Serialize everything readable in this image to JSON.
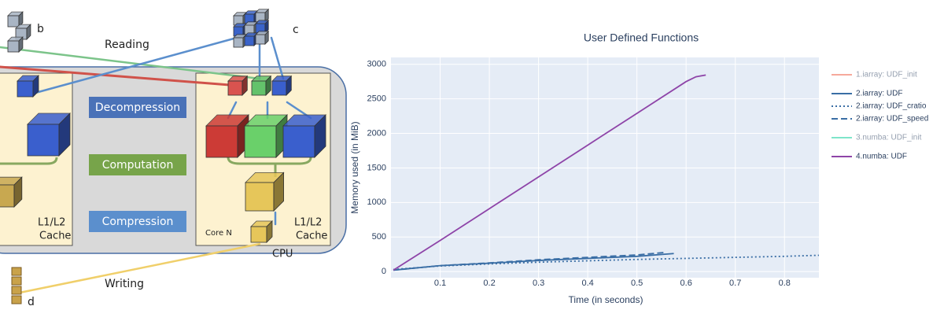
{
  "diagram": {
    "label_b": "b",
    "label_c": "c",
    "label_d": "d",
    "reading": "Reading",
    "writing": "Writing",
    "decompression": "Decompression",
    "computation": "Computation",
    "compression": "Compression",
    "cache_left": [
      "L1/L2",
      "Cache"
    ],
    "cache_right": [
      "L1/L2",
      "Cache"
    ],
    "core": "Core N",
    "cpu": "CPU"
  },
  "chart_data": {
    "type": "line",
    "title": "User Defined Functions",
    "x_label": "Time (in seconds)",
    "y_label": "Memory used (in MiB)",
    "xlim": [
      0,
      0.87
    ],
    "xticks": [
      0.1,
      0.2,
      0.3,
      0.4,
      0.5,
      0.6,
      0.7,
      0.8
    ],
    "ylim": [
      -90,
      3100
    ],
    "yticks": [
      0,
      500,
      1000,
      1500,
      2000,
      2500,
      3000
    ],
    "grid": true,
    "series": [
      {
        "name": "1.iarray: UDF_init",
        "color": "#ef553b",
        "dash": "solid",
        "visible": "legendonly",
        "x": [],
        "values": []
      },
      {
        "name": "2.iarray: UDF",
        "color": "#3a6ea5",
        "dash": "solid",
        "x": [
          0.005,
          0.1,
          0.2,
          0.3,
          0.4,
          0.5,
          0.575
        ],
        "values": [
          20,
          85,
          120,
          160,
          190,
          220,
          260
        ]
      },
      {
        "name": "2.iarray: UDF_cratio",
        "color": "#3a6ea5",
        "dash": "dot",
        "x": [
          0.005,
          0.1,
          0.2,
          0.3,
          0.4,
          0.5,
          0.6,
          0.7,
          0.8,
          0.87
        ],
        "values": [
          30,
          80,
          110,
          135,
          155,
          175,
          190,
          205,
          220,
          235
        ]
      },
      {
        "name": "2.iarray: UDF_speed",
        "color": "#3a6ea5",
        "dash": "dash",
        "x": [
          0.005,
          0.1,
          0.2,
          0.3,
          0.4,
          0.5,
          0.555
        ],
        "values": [
          20,
          85,
          125,
          170,
          205,
          240,
          275
        ]
      },
      {
        "name": "3.numba: UDF_init",
        "color": "#00cc96",
        "dash": "solid",
        "visible": "legendonly",
        "x": [],
        "values": []
      },
      {
        "name": "4.numba: UDF",
        "color": "#8e44a8",
        "dash": "solid",
        "x": [
          0.005,
          0.1,
          0.2,
          0.3,
          0.4,
          0.5,
          0.6,
          0.62,
          0.64
        ],
        "values": [
          20,
          450,
          910,
          1370,
          1830,
          2290,
          2750,
          2820,
          2845
        ]
      }
    ]
  }
}
